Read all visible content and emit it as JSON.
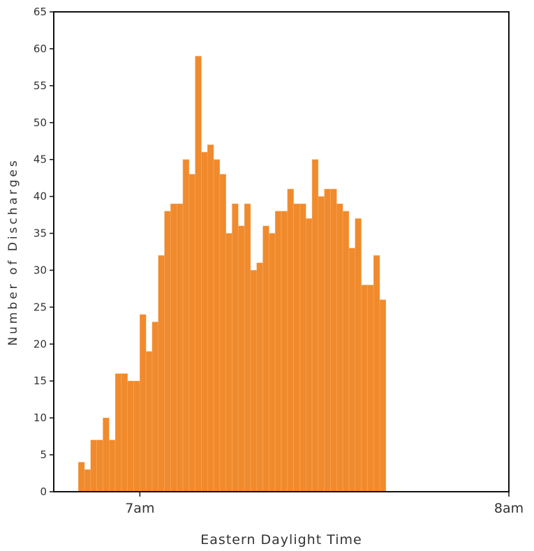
{
  "chart_data": {
    "type": "bar",
    "title": "",
    "xlabel": "Eastern Daylight Time",
    "ylabel": "Number of Discharges",
    "ylim": [
      0,
      65
    ],
    "yticks": [
      0,
      5,
      10,
      15,
      20,
      25,
      30,
      35,
      40,
      45,
      50,
      55,
      60,
      65
    ],
    "xlim_minutes_after_7am": [
      -14,
      60
    ],
    "xticks": [
      {
        "label": "7am",
        "minutes_after_7am": 0
      },
      {
        "label": "8am",
        "minutes_after_7am": 60
      }
    ],
    "bin_width_minutes": 1,
    "bins_start_minutes_after_7am": -10,
    "values": [
      4,
      3,
      7,
      7,
      10,
      7,
      16,
      16,
      15,
      15,
      24,
      19,
      23,
      32,
      38,
      39,
      39,
      45,
      43,
      59,
      46,
      47,
      45,
      43,
      35,
      39,
      36,
      39,
      30,
      31,
      36,
      35,
      38,
      38,
      41,
      39,
      39,
      37,
      45,
      40,
      41,
      41,
      39,
      38,
      33,
      37,
      28,
      28,
      32,
      26
    ],
    "grid": false,
    "legend": "none",
    "bar_color": "#F08A2C"
  }
}
